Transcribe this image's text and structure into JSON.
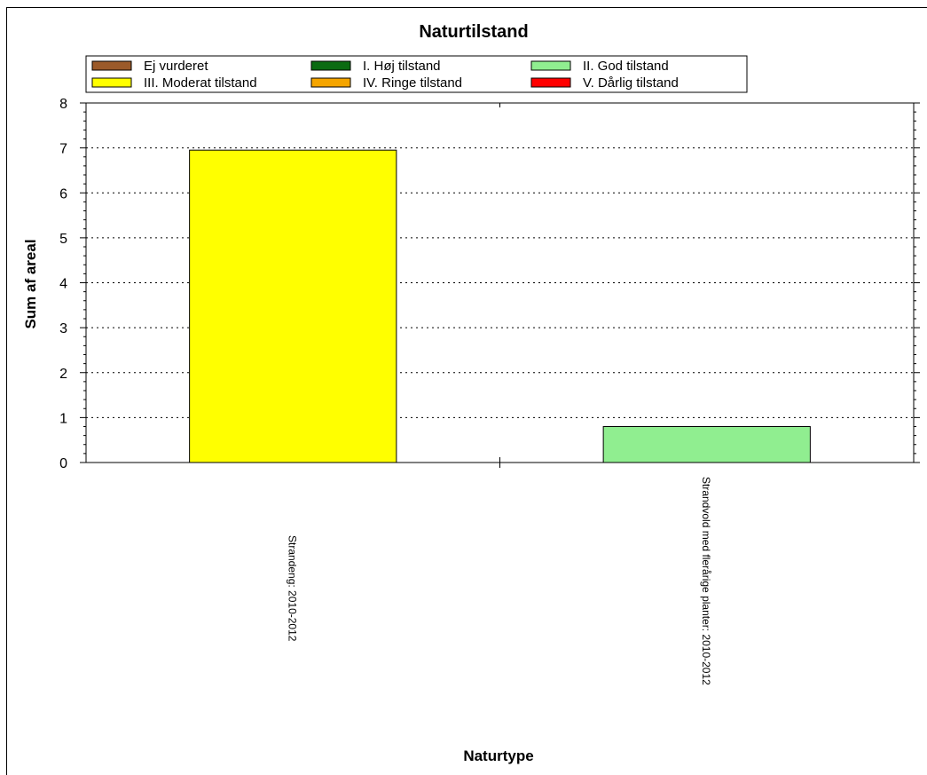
{
  "chart_data": {
    "type": "bar",
    "title": "Naturtilstand",
    "xlabel": "Naturtype",
    "ylabel": "Sum af areal",
    "ylim": [
      0,
      8
    ],
    "yticks": [
      "0",
      "1",
      "2",
      "3",
      "4",
      "5",
      "6",
      "7",
      "8"
    ],
    "grid": "horizontal dotted",
    "legend_placement": "top",
    "categories": [
      "Strandeng: 2010-2012",
      "Strandvold med flerårige planter: 2010-2012"
    ],
    "legend": [
      {
        "label": "Ej vurderet",
        "color": "#9b5a2a"
      },
      {
        "label": "I. Høj tilstand",
        "color": "#0b6b12"
      },
      {
        "label": "II. God tilstand",
        "color": "#90ee90"
      },
      {
        "label": "III. Moderat tilstand",
        "color": "#ffff00"
      },
      {
        "label": "IV. Ringe tilstand",
        "color": "#f5a500"
      },
      {
        "label": "V. Dårlig tilstand",
        "color": "#ff0000"
      }
    ],
    "bars": [
      {
        "category": "Strandeng: 2010-2012",
        "series": "III. Moderat tilstand",
        "value": 6.95,
        "color": "#ffff00"
      },
      {
        "category": "Strandvold med flerårige planter: 2010-2012",
        "series": "II. God tilstand",
        "value": 0.8,
        "color": "#90ee90"
      }
    ]
  }
}
